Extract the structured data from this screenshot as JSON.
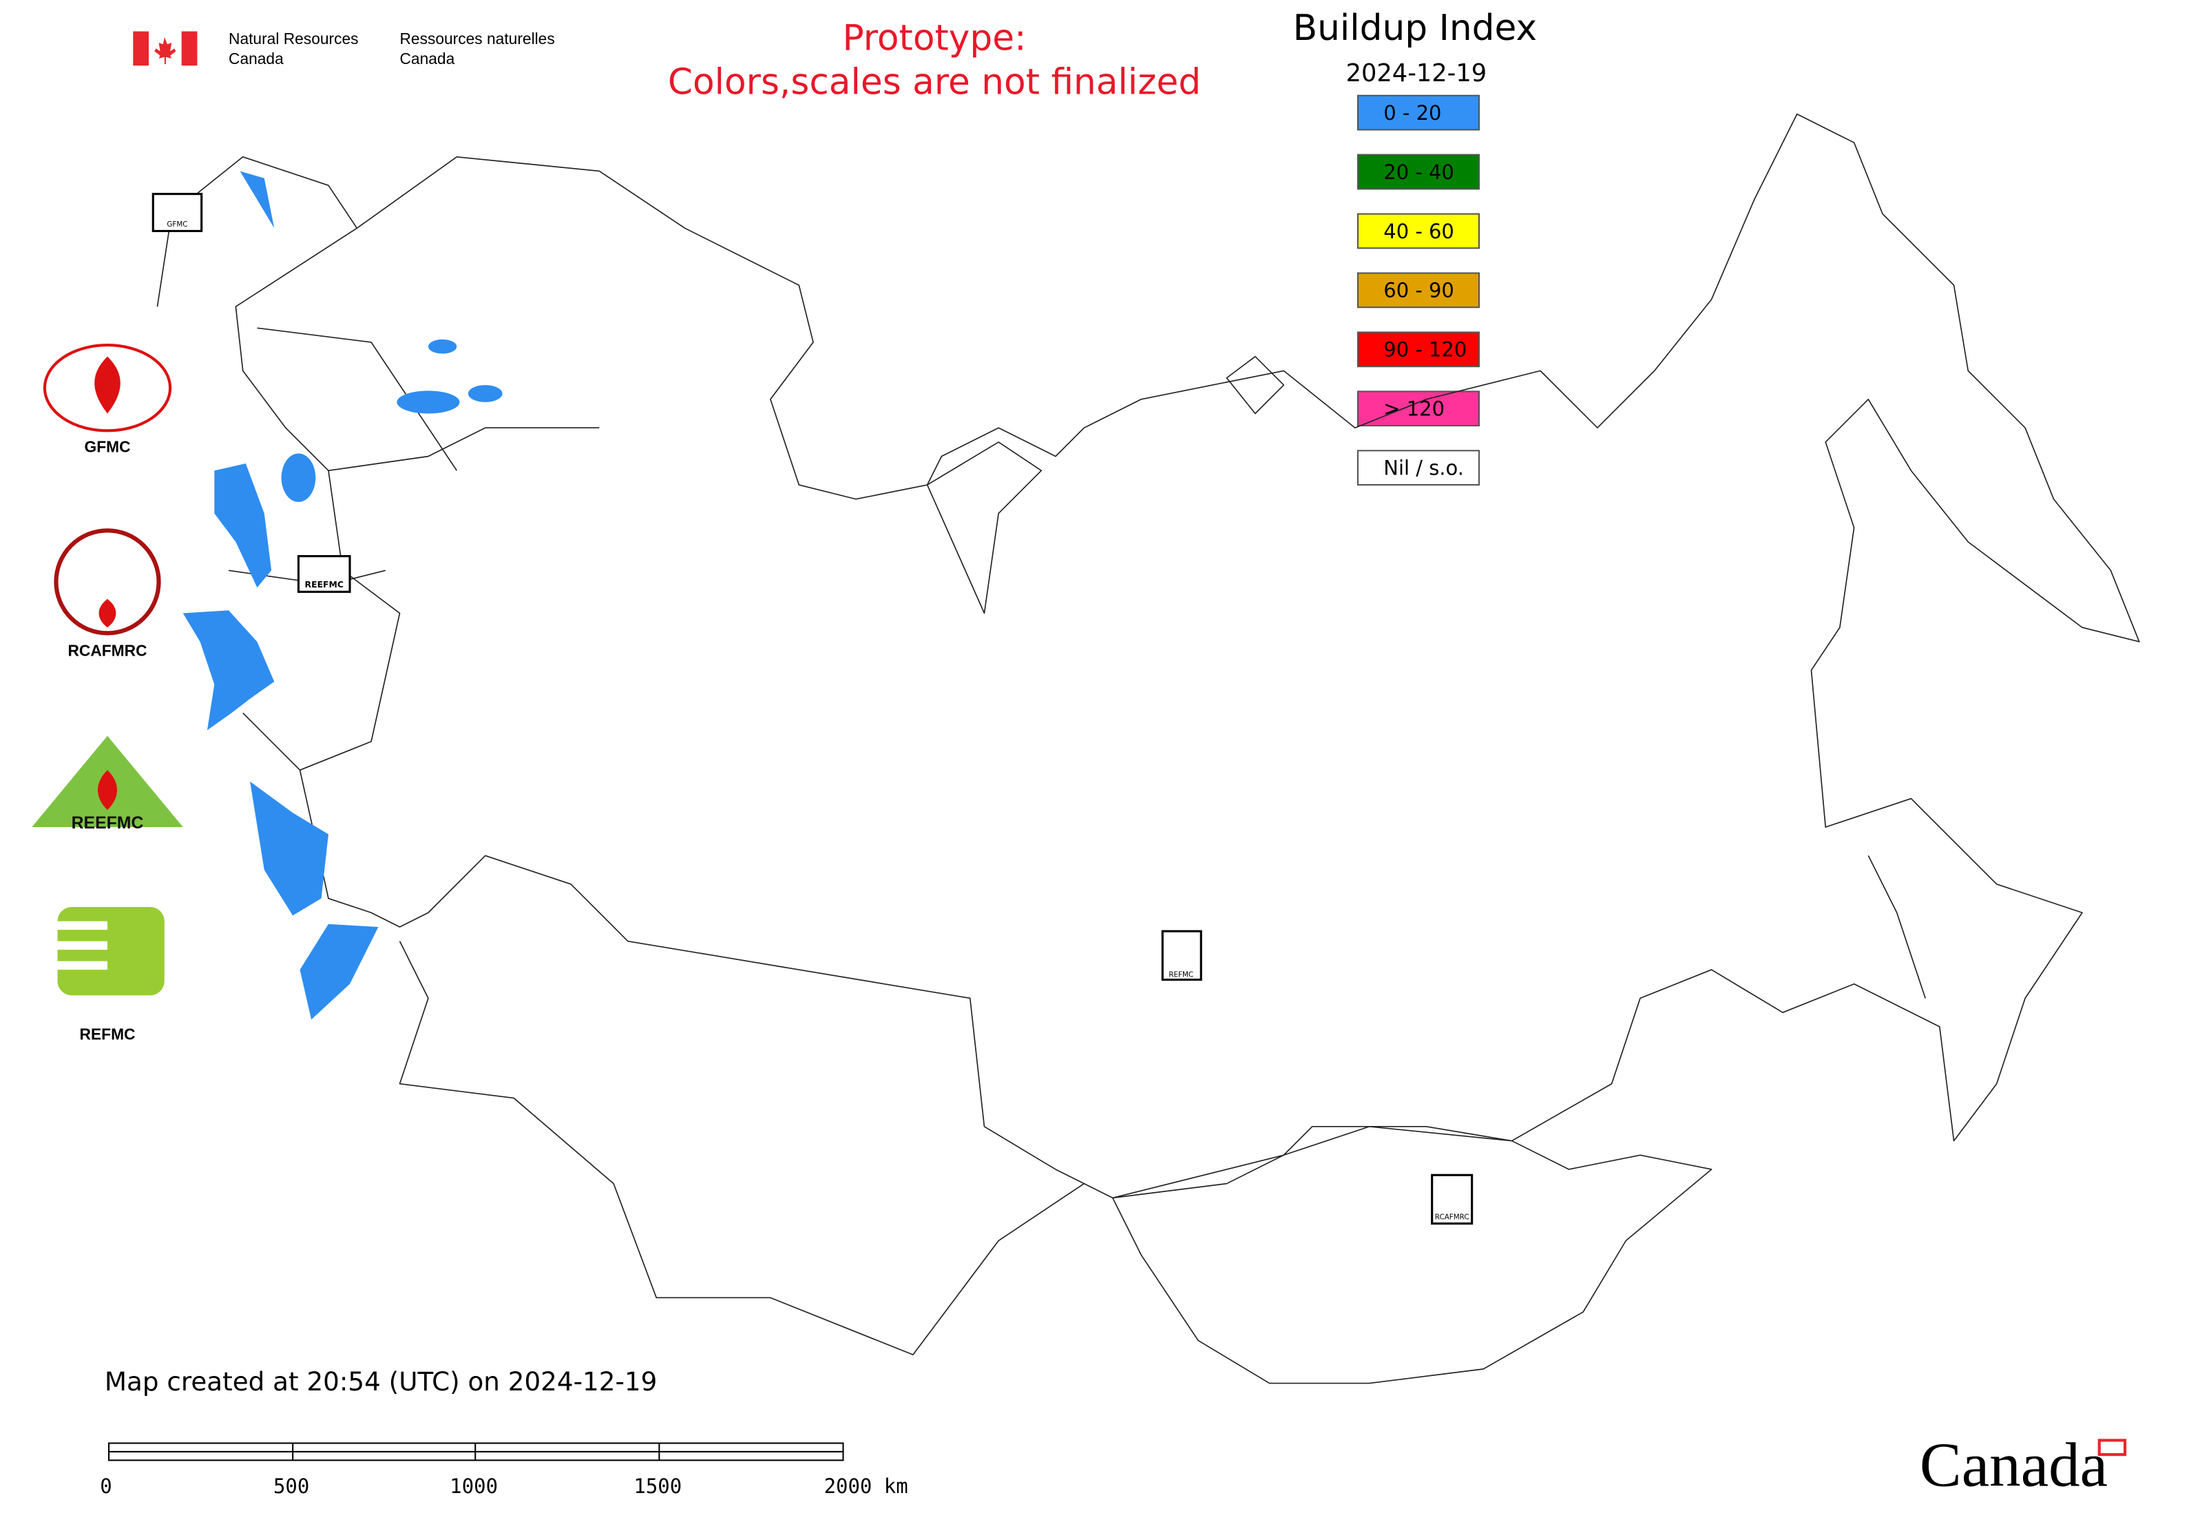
{
  "header": {
    "dept_en_1": "Natural Resources",
    "dept_en_2": "Canada",
    "dept_fr_1": "Ressources naturelles",
    "dept_fr_2": "Canada"
  },
  "notice": {
    "line1": "Prototype:",
    "line2": "Colors,scales are not finalized"
  },
  "legend": {
    "title": "Buildup Index",
    "date": "2024-12-19",
    "items": [
      {
        "label": "0 - 20",
        "color": "#3391f5"
      },
      {
        "label": "20 - 40",
        "color": "#008000"
      },
      {
        "label": "40 - 60",
        "color": "#ffff00"
      },
      {
        "label": "60 - 90",
        "color": "#e0a000"
      },
      {
        "label": "90 - 120",
        "color": "#ff0000"
      },
      {
        "label": "> 120",
        "color": "#ff3399"
      },
      {
        "label": "Nil / s.o.",
        "color": "#ffffff"
      }
    ]
  },
  "logos": [
    "GFMC",
    "RCAFMRC",
    "REEFMC",
    "REFMC"
  ],
  "footer": {
    "created": "Map created at 20:54 (UTC) on 2024-12-19",
    "scale_labels": [
      "0",
      "500",
      "1000",
      "1500",
      "2000 km"
    ],
    "wordmark": "Canada"
  }
}
